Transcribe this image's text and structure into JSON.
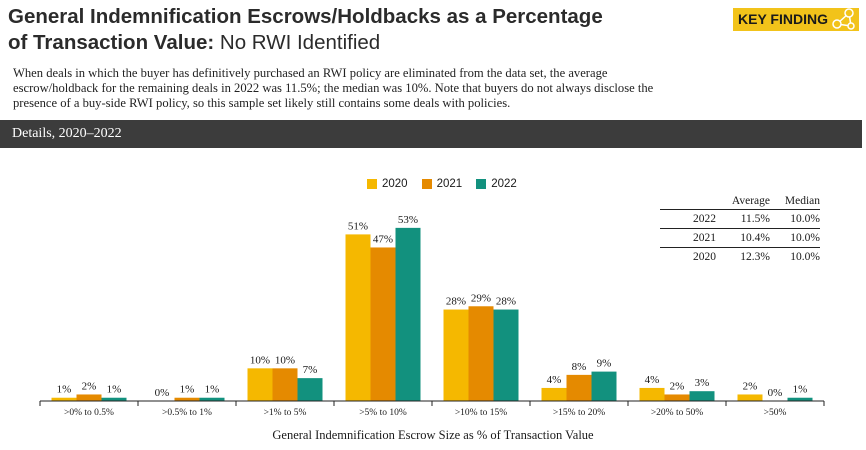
{
  "header": {
    "title_part1": "General Indemnification",
    "title_part2": " Escrows/Holdbacks as a Percentage",
    "title_part3": "of Transaction Value:",
    "title_part4": " No RWI Identified",
    "badge_label": "KEY FINDING"
  },
  "intro": "When deals in which the buyer has definitively purchased an RWI policy are eliminated from the data set, the average escrow/holdback for the remaining deals in 2022 was 11.5%; the median was 10%. Note that buyers do not always disclose the presence of a buy-side RWI policy, so this sample set likely still contains some deals with policies.",
  "section_title": "Details, 2020–2022",
  "colors": {
    "2020": "#f5b800",
    "2021": "#e58a00",
    "2022": "#12917e",
    "badge": "#f2c31a"
  },
  "icons": {
    "badge": "network-nodes-icon"
  },
  "stats_table": {
    "headers": [
      "",
      "Average",
      "Median"
    ],
    "rows": [
      {
        "year": "2022",
        "average": "11.5%",
        "median": "10.0%"
      },
      {
        "year": "2021",
        "average": "10.4%",
        "median": "10.0%"
      },
      {
        "year": "2020",
        "average": "12.3%",
        "median": "10.0%"
      }
    ]
  },
  "chart_data": {
    "type": "bar",
    "categories": [
      ">0% to 0.5%",
      ">0.5% to 1%",
      ">1% to 5%",
      ">5% to 10%",
      ">10% to 15%",
      ">15% to 20%",
      ">20% to 50%",
      ">50%"
    ],
    "series": [
      {
        "name": "2020",
        "values": [
          1,
          0,
          10,
          51,
          28,
          4,
          4,
          2
        ]
      },
      {
        "name": "2021",
        "values": [
          2,
          1,
          10,
          47,
          29,
          8,
          2,
          0
        ]
      },
      {
        "name": "2022",
        "values": [
          1,
          1,
          7,
          53,
          28,
          9,
          3,
          1
        ]
      }
    ],
    "value_suffix": "%",
    "xlabel": "General Indemnification Escrow Size as % of Transaction Value",
    "ylabel": "",
    "ylim": [
      0,
      60
    ],
    "grid": false,
    "legend_position": "top"
  }
}
